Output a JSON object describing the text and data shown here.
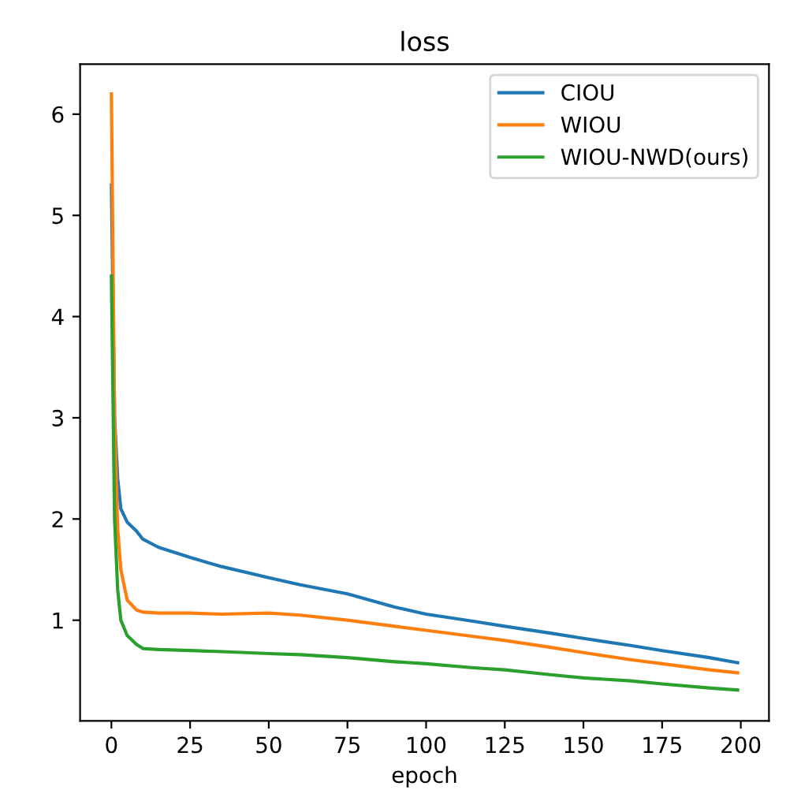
{
  "chart_data": {
    "type": "line",
    "title": "loss",
    "xlabel": "epoch",
    "legend": "top right",
    "grid": false,
    "xlim": [
      -9.95,
      208.95
    ],
    "ylim": [
      0.005,
      6.495
    ],
    "xticks": [
      0,
      25,
      50,
      75,
      100,
      125,
      150,
      175,
      200
    ],
    "yticks": [
      1,
      2,
      3,
      4,
      5,
      6
    ],
    "series": [
      {
        "name": "CIOU",
        "color": "#1f77b4",
        "x": [
          0,
          1,
          2,
          3,
          5,
          8,
          10,
          15,
          25,
          35,
          50,
          60,
          75,
          90,
          100,
          115,
          125,
          140,
          150,
          165,
          175,
          190,
          199
        ],
        "values": [
          5.3,
          3.0,
          2.4,
          2.1,
          1.97,
          1.88,
          1.8,
          1.72,
          1.62,
          1.53,
          1.42,
          1.35,
          1.26,
          1.13,
          1.06,
          0.99,
          0.94,
          0.87,
          0.82,
          0.75,
          0.7,
          0.63,
          0.58
        ]
      },
      {
        "name": "WIOU",
        "color": "#ff7f0e",
        "x": [
          0,
          1,
          2,
          3,
          5,
          8,
          10,
          15,
          25,
          35,
          50,
          60,
          75,
          90,
          100,
          115,
          125,
          140,
          150,
          165,
          175,
          190,
          199
        ],
        "values": [
          6.2,
          3.0,
          1.9,
          1.5,
          1.2,
          1.1,
          1.08,
          1.07,
          1.07,
          1.06,
          1.07,
          1.05,
          1.0,
          0.94,
          0.9,
          0.84,
          0.8,
          0.73,
          0.68,
          0.61,
          0.57,
          0.51,
          0.48
        ]
      },
      {
        "name": "WIOU-NWD(ours)",
        "color": "#2ca02c",
        "x": [
          0,
          1,
          2,
          3,
          5,
          8,
          10,
          15,
          25,
          35,
          50,
          60,
          75,
          90,
          100,
          115,
          125,
          140,
          150,
          165,
          175,
          190,
          199
        ],
        "values": [
          4.4,
          2.0,
          1.3,
          1.0,
          0.85,
          0.76,
          0.72,
          0.71,
          0.7,
          0.69,
          0.67,
          0.66,
          0.63,
          0.59,
          0.57,
          0.53,
          0.51,
          0.46,
          0.43,
          0.4,
          0.37,
          0.33,
          0.31
        ]
      }
    ]
  }
}
